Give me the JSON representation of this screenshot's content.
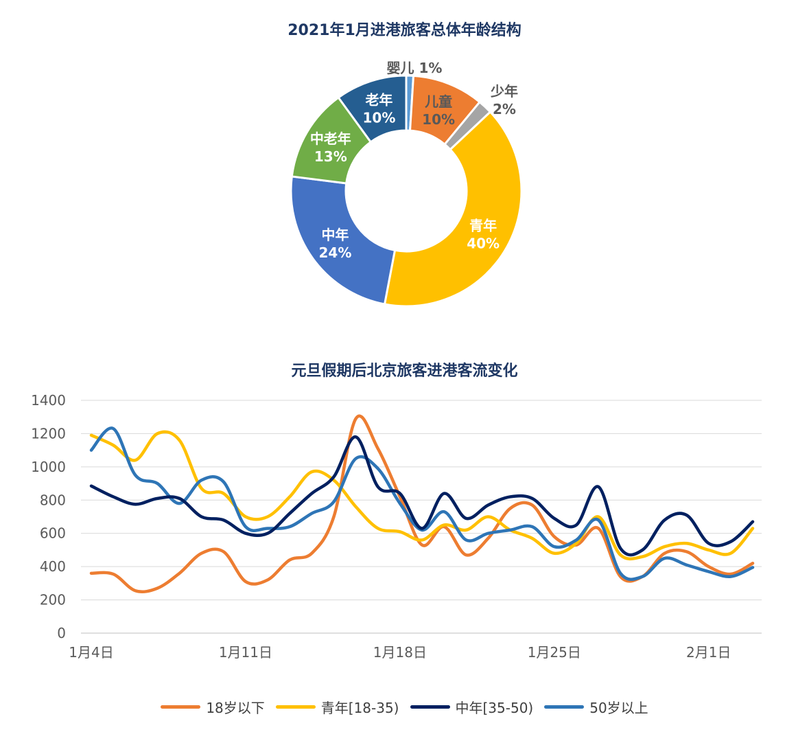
{
  "chart_data": [
    {
      "type": "pie",
      "variant": "donut",
      "title": "2021年1月进港旅客总体年龄结构",
      "slices": [
        {
          "name": "婴儿",
          "percent_label": "1%",
          "value": 1,
          "color": "#5B9BD5",
          "label_color": "#595959",
          "label_inside": false
        },
        {
          "name": "儿童",
          "percent_label": "10%",
          "value": 10,
          "color": "#ED7D31",
          "label_color": "#595959",
          "label_inside": true
        },
        {
          "name": "少年",
          "percent_label": "2%",
          "value": 2,
          "color": "#A5A5A5",
          "label_color": "#595959",
          "label_inside": false
        },
        {
          "name": "青年",
          "percent_label": "40%",
          "value": 40,
          "color": "#FFC000",
          "label_color": "#ffffff",
          "label_inside": true
        },
        {
          "name": "中年",
          "percent_label": "24%",
          "value": 24,
          "color": "#4472C4",
          "label_color": "#ffffff",
          "label_inside": true
        },
        {
          "name": "中老年",
          "percent_label": "13%",
          "value": 13,
          "color": "#70AD47",
          "label_color": "#ffffff",
          "label_inside": true
        },
        {
          "name": "老年",
          "percent_label": "10%",
          "value": 10,
          "color": "#255E91",
          "label_color": "#ffffff",
          "label_inside": true
        }
      ]
    },
    {
      "type": "line",
      "title": "元旦假期后北京旅客进港客流变化",
      "x": [
        "1月4日",
        "1月5日",
        "1月6日",
        "1月7日",
        "1月8日",
        "1月9日",
        "1月10日",
        "1月11日",
        "1月12日",
        "1月13日",
        "1月14日",
        "1月15日",
        "1月16日",
        "1月17日",
        "1月18日",
        "1月19日",
        "1月20日",
        "1月21日",
        "1月22日",
        "1月23日",
        "1月24日",
        "1月25日",
        "1月26日",
        "1月27日",
        "1月28日",
        "1月29日",
        "1月30日",
        "1月31日",
        "2月1日",
        "2月2日",
        "2月3日"
      ],
      "xtick_labels": [
        "1月4日",
        "1月11日",
        "1月18日",
        "1月25日",
        "2月1日"
      ],
      "ylim": [
        0,
        1400
      ],
      "yticks": [
        0,
        200,
        400,
        600,
        800,
        1000,
        1200,
        1400
      ],
      "grid": true,
      "legend_position": "bottom",
      "series": [
        {
          "name": "18岁以下",
          "color": "#ED7D31",
          "values": [
            360,
            355,
            255,
            270,
            360,
            480,
            490,
            310,
            320,
            440,
            480,
            700,
            1290,
            1110,
            820,
            530,
            640,
            470,
            570,
            750,
            770,
            580,
            530,
            630,
            340,
            340,
            480,
            490,
            400,
            355,
            420
          ]
        },
        {
          "name": "青年[18-35)",
          "color": "#FFC000",
          "values": [
            1190,
            1130,
            1040,
            1200,
            1160,
            870,
            840,
            700,
            700,
            820,
            970,
            920,
            760,
            630,
            610,
            560,
            650,
            620,
            700,
            620,
            570,
            480,
            540,
            700,
            470,
            460,
            520,
            540,
            500,
            480,
            630
          ]
        },
        {
          "name": "中年[35-50)",
          "color": "#002060",
          "values": [
            885,
            820,
            775,
            810,
            810,
            700,
            680,
            600,
            600,
            720,
            840,
            940,
            1180,
            880,
            840,
            630,
            840,
            690,
            770,
            820,
            810,
            690,
            650,
            880,
            510,
            500,
            680,
            710,
            540,
            550,
            670
          ]
        },
        {
          "name": "50岁以上",
          "color": "#2E75B6",
          "values": [
            1100,
            1230,
            950,
            900,
            780,
            920,
            910,
            640,
            630,
            640,
            720,
            790,
            1050,
            990,
            780,
            620,
            730,
            560,
            600,
            620,
            640,
            520,
            560,
            680,
            360,
            340,
            450,
            410,
            370,
            340,
            395
          ]
        }
      ]
    }
  ]
}
